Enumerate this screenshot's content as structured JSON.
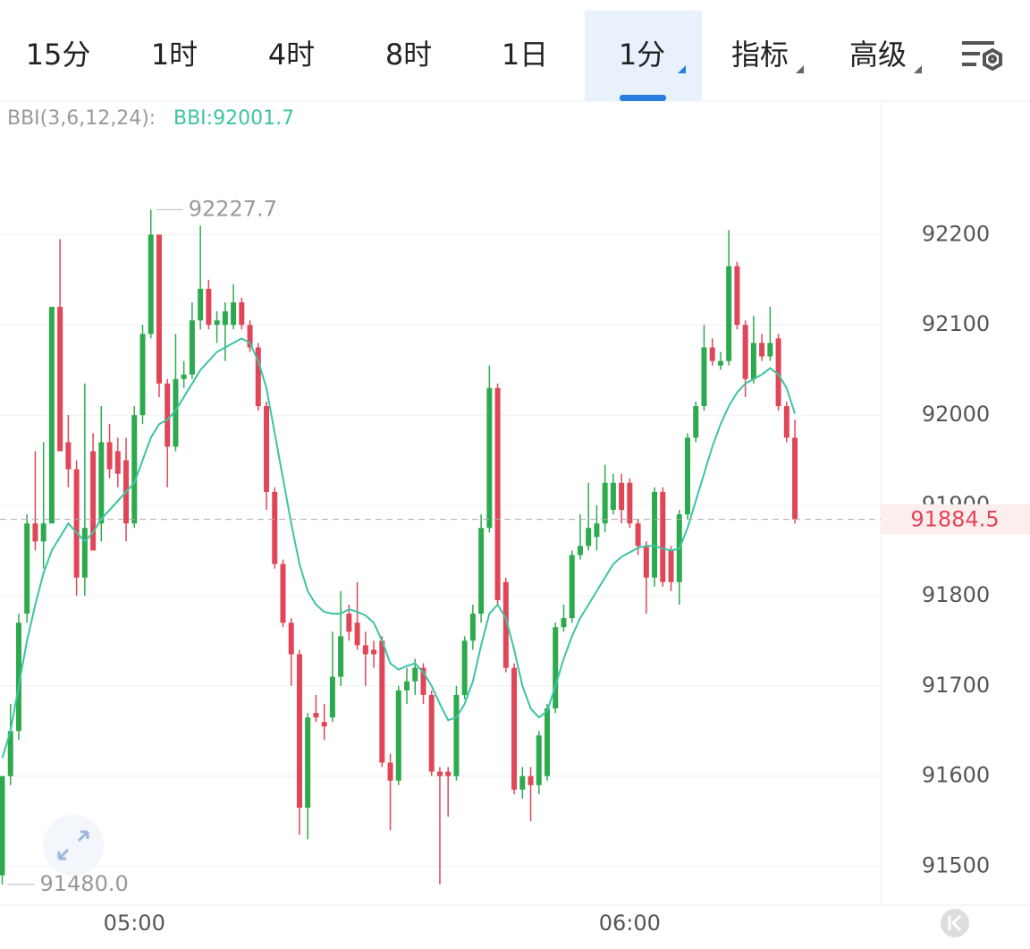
{
  "tabs": [
    "15分",
    "1时",
    "4时",
    "8时",
    "1日",
    "1分",
    "指标",
    "高级"
  ],
  "active_tab": 5,
  "chart_data": {
    "type": "candlestick",
    "categories": [
      null,
      null,
      null,
      null,
      null,
      null,
      null,
      null,
      null,
      null,
      null,
      null,
      null,
      null,
      null,
      null,
      "05:00",
      null,
      null,
      null,
      null,
      null,
      null,
      null,
      null,
      null,
      null,
      null,
      null,
      null,
      null,
      null,
      null,
      null,
      null,
      null,
      null,
      null,
      null,
      null,
      null,
      null,
      null,
      null,
      null,
      null,
      null,
      null,
      null,
      null,
      null,
      null,
      null,
      null,
      null,
      null,
      null,
      null,
      null,
      null,
      null,
      null,
      null,
      null,
      null,
      null,
      null,
      null,
      null,
      null,
      null,
      null,
      null,
      null,
      null,
      null,
      "06:00",
      null,
      null,
      null,
      null,
      null,
      null,
      null,
      null,
      null,
      null,
      null,
      null,
      null,
      null,
      null,
      null,
      null,
      null,
      null,
      null
    ],
    "open": [
      91490,
      91600,
      91650,
      91780,
      91880,
      91860,
      91880,
      92120,
      91970,
      91940,
      91820,
      91960,
      91880,
      91970,
      91960,
      91950,
      91880,
      92000,
      92090,
      92200,
      92035,
      91965,
      92040,
      92045,
      92105,
      92140,
      92100,
      92100,
      92100,
      92125,
      92100,
      92075,
      92010,
      91915,
      91835,
      91770,
      91735,
      91565,
      91670,
      91660,
      91665,
      91710,
      91780,
      91770,
      91745,
      91740,
      91750,
      91615,
      91595,
      91695,
      91705,
      91720,
      91690,
      91605,
      91605,
      91600,
      91690,
      91750,
      91780,
      91875,
      92030,
      91815,
      91720,
      91585,
      91600,
      91590,
      91600,
      91675,
      91765,
      91775,
      91845,
      91855,
      91865,
      91880,
      91895,
      91925,
      91925,
      91880,
      91855,
      91820,
      91915,
      91850,
      91815,
      91890,
      91975,
      92010,
      92075,
      92055,
      92060,
      92165,
      92100,
      92040,
      92080,
      92065,
      92085,
      92010,
      91975
    ],
    "high": [
      91600,
      91680,
      91780,
      91890,
      91960,
      91970,
      92120,
      92195,
      92000,
      91950,
      92035,
      91980,
      92010,
      91990,
      91975,
      91975,
      92010,
      92100,
      92227.7,
      92200,
      92040,
      92090,
      92060,
      92125,
      92210,
      92150,
      92115,
      92125,
      92145,
      92130,
      92105,
      92080,
      92015,
      91920,
      91840,
      91775,
      91740,
      91670,
      91690,
      91680,
      91760,
      91805,
      91790,
      91815,
      91760,
      91750,
      91755,
      91625,
      91700,
      91720,
      91730,
      91725,
      91695,
      91610,
      91610,
      91700,
      91755,
      91790,
      91890,
      92055,
      92035,
      91820,
      91725,
      91610,
      91610,
      91650,
      91680,
      91770,
      91790,
      91850,
      91890,
      91925,
      91900,
      91945,
      91935,
      91935,
      91930,
      91885,
      91860,
      91920,
      91920,
      91855,
      91895,
      91980,
      92015,
      92100,
      92085,
      92070,
      92205,
      92170,
      92105,
      92110,
      92090,
      92120,
      92090,
      92015,
      91995
    ],
    "low": [
      91480,
      91590,
      91640,
      91770,
      91850,
      91830,
      91880,
      91960,
      91920,
      91800,
      91800,
      91850,
      91860,
      91930,
      91920,
      91860,
      91875,
      91990,
      92085,
      92020,
      91920,
      91960,
      92030,
      92040,
      92095,
      92095,
      92080,
      92060,
      92095,
      92095,
      92070,
      92005,
      91895,
      91830,
      91765,
      91700,
      91535,
      91530,
      91660,
      91640,
      91660,
      91700,
      91750,
      91740,
      91700,
      91720,
      91610,
      91540,
      91590,
      91680,
      91690,
      91680,
      91600,
      91480,
      91555,
      91595,
      91685,
      91740,
      91770,
      91870,
      91790,
      91715,
      91580,
      91575,
      91550,
      91580,
      91595,
      91670,
      91760,
      91770,
      91840,
      91850,
      91850,
      91870,
      91890,
      91880,
      91875,
      91845,
      91780,
      91810,
      91810,
      91805,
      91790,
      91885,
      91970,
      92005,
      92055,
      92050,
      92055,
      92095,
      92020,
      92035,
      92060,
      92060,
      92005,
      91970,
      91880
    ],
    "close": [
      91600,
      91650,
      91770,
      91880,
      91860,
      91880,
      92120,
      91960,
      91940,
      91820,
      91875,
      91850,
      91970,
      91940,
      91935,
      91880,
      92000,
      92090,
      92200,
      92035,
      91965,
      92040,
      92045,
      92105,
      92140,
      92100,
      92105,
      92115,
      92125,
      92100,
      92075,
      92010,
      91915,
      91835,
      91770,
      91735,
      91565,
      91665,
      91665,
      91655,
      91710,
      91755,
      91760,
      91745,
      91735,
      91735,
      91615,
      91595,
      91695,
      91705,
      91720,
      91690,
      91605,
      91600,
      91600,
      91690,
      91750,
      91780,
      91875,
      92030,
      91795,
      91720,
      91585,
      91600,
      91590,
      91645,
      91675,
      91765,
      91775,
      91845,
      91855,
      91875,
      91880,
      91925,
      91925,
      91895,
      91880,
      91855,
      91820,
      91915,
      91815,
      91815,
      91890,
      91975,
      92010,
      92075,
      92060,
      92060,
      92165,
      92100,
      92040,
      92080,
      92065,
      92080,
      92010,
      91975,
      91884.5
    ],
    "up_color": "#2eaa4e",
    "down_color": "#e04658",
    "bbi": {
      "name": "BBI(3,6,12,24):",
      "label": "BBI:92001.7",
      "color": "#3cc4a2",
      "values": [
        91620,
        91650,
        91700,
        91750,
        91790,
        91825,
        91850,
        91865,
        91880,
        91870,
        91860,
        91870,
        91885,
        91895,
        91905,
        91915,
        91925,
        91950,
        91975,
        91990,
        91995,
        92005,
        92020,
        92035,
        92050,
        92060,
        92070,
        92075,
        92080,
        92085,
        92080,
        92060,
        92030,
        91980,
        91930,
        91880,
        91835,
        91805,
        91790,
        91782,
        91780,
        91780,
        91785,
        91782,
        91778,
        91770,
        91750,
        91725,
        91718,
        91722,
        91725,
        91715,
        91700,
        91680,
        91662,
        91665,
        91680,
        91705,
        91745,
        91780,
        91790,
        91775,
        91740,
        91700,
        91675,
        91665,
        91672,
        91700,
        91730,
        91755,
        91775,
        91790,
        91805,
        91820,
        91835,
        91843,
        91848,
        91853,
        91855,
        91855,
        91852,
        91850,
        91852,
        91875,
        91905,
        91935,
        91965,
        91990,
        92010,
        92025,
        92035,
        92040,
        92045,
        92052,
        92045,
        92030,
        92001.7
      ]
    },
    "max_label": "92227.7",
    "min_label": "91480.0",
    "last_label": "91884.5",
    "ylim": [
      91457,
      92348
    ],
    "yticks": [
      91500,
      91600,
      91700,
      91800,
      91900,
      92000,
      92100,
      92200
    ],
    "grid": true
  }
}
